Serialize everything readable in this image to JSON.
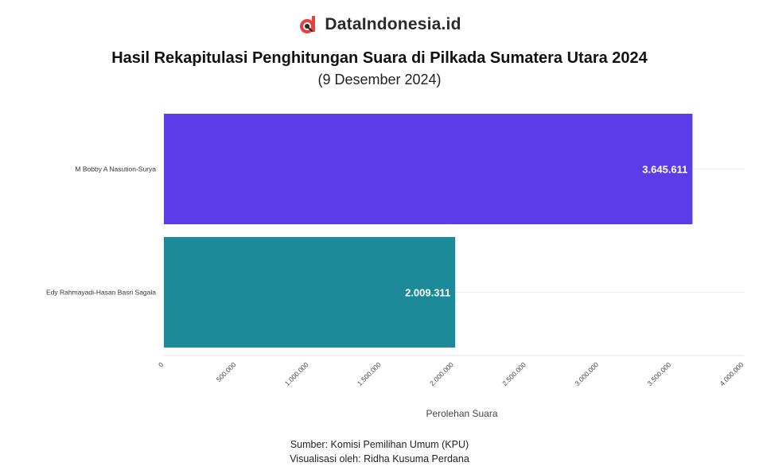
{
  "brand": {
    "name": "DataIndonesia.id",
    "logo_color": "#e8413c"
  },
  "header": {
    "title": "Hasil Rekapitulasi Penghitungan Suara di Pilkada Sumatera Utara 2024",
    "subtitle": "(9 Desember 2024)"
  },
  "footer": {
    "source": "Sumber: Komisi Pemilihan Umum (KPU)",
    "credit": "Visualisasi oleh: Ridha Kusuma Perdana"
  },
  "chart_data": {
    "type": "bar",
    "orientation": "horizontal",
    "categories": [
      "M Bobby A Nasution-Surya",
      "Edy Rahmayadi-Hasan Basri Sagala"
    ],
    "values": [
      3645611,
      2009311
    ],
    "value_labels": [
      "3.645.611",
      "2.009.311"
    ],
    "bar_colors": [
      "#5b3de8",
      "#1d8a9a"
    ],
    "xlabel": "Perolehan Suara",
    "ylabel": "",
    "xlim": [
      0,
      4000000
    ],
    "xticks": [
      0,
      500000,
      1000000,
      1500000,
      2000000,
      2500000,
      3000000,
      3500000,
      4000000
    ],
    "xtick_labels": [
      "0",
      "500.000",
      "1.000.000",
      "1.500.000",
      "2.000.000",
      "2.500.000",
      "3.000.000",
      "3.500.000",
      "4.000.000"
    ],
    "grid": true
  }
}
